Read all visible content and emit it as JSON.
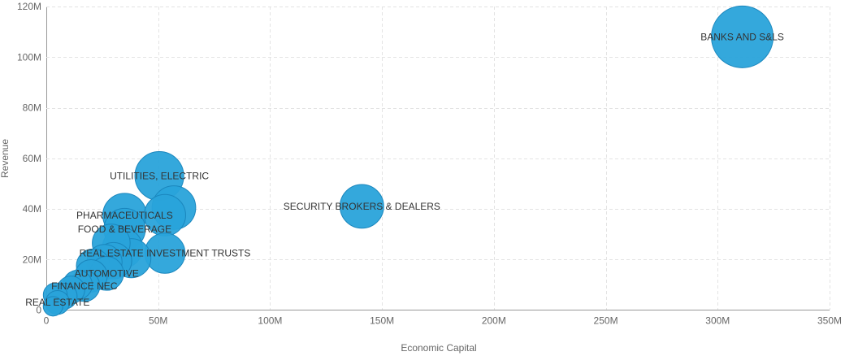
{
  "chart_data": {
    "type": "scatter",
    "title": "",
    "xlabel": "Economic Capital",
    "ylabel": "Revenue",
    "xlim": [
      0,
      350000000
    ],
    "ylim": [
      0,
      120000000
    ],
    "x_ticks": [
      "0",
      "50M",
      "100M",
      "150M",
      "200M",
      "250M",
      "300M",
      "350M"
    ],
    "y_ticks": [
      "0",
      "20M",
      "40M",
      "60M",
      "80M",
      "100M",
      "120M"
    ],
    "x_tick_values": [
      0,
      50000000,
      100000000,
      150000000,
      200000000,
      250000000,
      300000000,
      350000000
    ],
    "y_tick_values": [
      0,
      20000000,
      40000000,
      60000000,
      80000000,
      100000000,
      120000000
    ],
    "grid": true,
    "colors": {
      "bubble_fill": "#29a3da",
      "bubble_stroke": "#1a86bd"
    },
    "points": [
      {
        "label": "BANKS AND S&LS",
        "x": 311000000,
        "y": 108000000,
        "size": 40
      },
      {
        "label": "SECURITY BROKERS & DEALERS",
        "x": 141000000,
        "y": 41000000,
        "size": 20
      },
      {
        "label": "UTILITIES, ELECTRIC",
        "x": 50500000,
        "y": 53000000,
        "size": 25
      },
      {
        "label": "",
        "x": 57000000,
        "y": 40500000,
        "size": 20
      },
      {
        "label": "",
        "x": 53000000,
        "y": 37500000,
        "size": 18
      },
      {
        "label": "PHARMACEUTICALS",
        "x": 35000000,
        "y": 37500000,
        "size": 20
      },
      {
        "label": "FOOD & BEVERAGE",
        "x": 35000000,
        "y": 32000000,
        "size": 18
      },
      {
        "label": "REAL ESTATE INVESTMENT TRUSTS",
        "x": 53000000,
        "y": 22500000,
        "size": 17
      },
      {
        "label": "",
        "x": 29000000,
        "y": 26500000,
        "size": 15
      },
      {
        "label": "",
        "x": 34000000,
        "y": 24500000,
        "size": 17
      },
      {
        "label": "",
        "x": 38000000,
        "y": 20500000,
        "size": 16
      },
      {
        "label": "",
        "x": 30000000,
        "y": 19500000,
        "size": 14
      },
      {
        "label": "",
        "x": 26000000,
        "y": 19000000,
        "size": 13
      },
      {
        "label": "",
        "x": 21000000,
        "y": 17500000,
        "size": 12
      },
      {
        "label": "AUTOMOTIVE",
        "x": 27000000,
        "y": 14500000,
        "size": 12
      },
      {
        "label": "",
        "x": 20000000,
        "y": 13500000,
        "size": 11
      },
      {
        "label": "FINANCE NEC",
        "x": 17000000,
        "y": 9500000,
        "size": 10
      },
      {
        "label": "",
        "x": 14000000,
        "y": 10000000,
        "size": 9
      },
      {
        "label": "",
        "x": 11000000,
        "y": 8000000,
        "size": 8
      },
      {
        "label": "",
        "x": 8000000,
        "y": 5500000,
        "size": 7
      },
      {
        "label": "",
        "x": 4000000,
        "y": 6000000,
        "size": 6
      },
      {
        "label": "REAL ESTATE",
        "x": 5000000,
        "y": 3000000,
        "size": 6
      },
      {
        "label": "",
        "x": 3000000,
        "y": 1500000,
        "size": 4
      }
    ]
  }
}
